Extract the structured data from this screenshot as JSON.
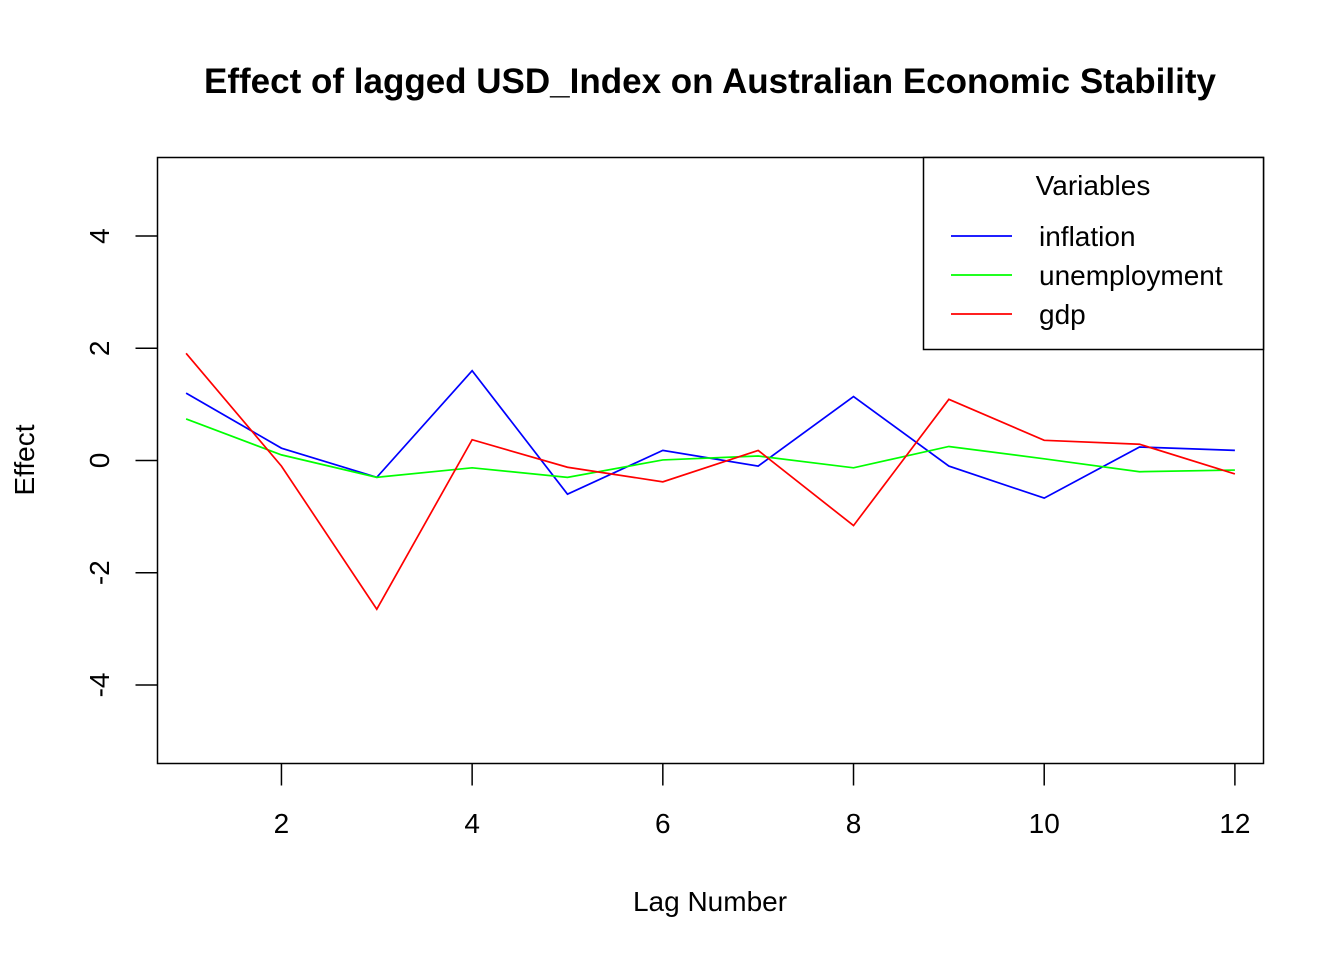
{
  "chart_data": {
    "type": "line",
    "title": "Effect of lagged USD_Index on Australian Economic Stability",
    "xlabel": "Lag Number",
    "ylabel": "Effect",
    "x": [
      1,
      2,
      3,
      4,
      5,
      6,
      7,
      8,
      9,
      10,
      11,
      12
    ],
    "xlim": [
      0.7,
      12.3
    ],
    "ylim": [
      -5.4,
      5.4
    ],
    "xticks": [
      2,
      4,
      6,
      8,
      10,
      12
    ],
    "xtick_labels": [
      "2",
      "4",
      "6",
      "8",
      "10",
      "12"
    ],
    "yticks": [
      -4,
      -2,
      0,
      2,
      4
    ],
    "ytick_labels": [
      "-4",
      "-2",
      "0",
      "2",
      "4"
    ],
    "grid": false,
    "legend": {
      "title": "Variables",
      "position": "top-right"
    },
    "series": [
      {
        "name": "inflation",
        "color": "#0000ff",
        "values": [
          1.2,
          0.22,
          -0.3,
          1.6,
          -0.6,
          0.18,
          -0.1,
          1.14,
          -0.1,
          -0.67,
          0.24,
          0.18
        ]
      },
      {
        "name": "unemployment",
        "color": "#00ff00",
        "values": [
          0.74,
          0.1,
          -0.3,
          -0.13,
          -0.3,
          0.01,
          0.08,
          -0.13,
          0.25,
          0.03,
          -0.2,
          -0.17
        ]
      },
      {
        "name": "gdp",
        "color": "#ff0000",
        "values": [
          1.91,
          -0.1,
          -2.65,
          0.37,
          -0.12,
          -0.38,
          0.18,
          -1.16,
          1.09,
          0.36,
          0.29,
          -0.24
        ]
      }
    ]
  }
}
